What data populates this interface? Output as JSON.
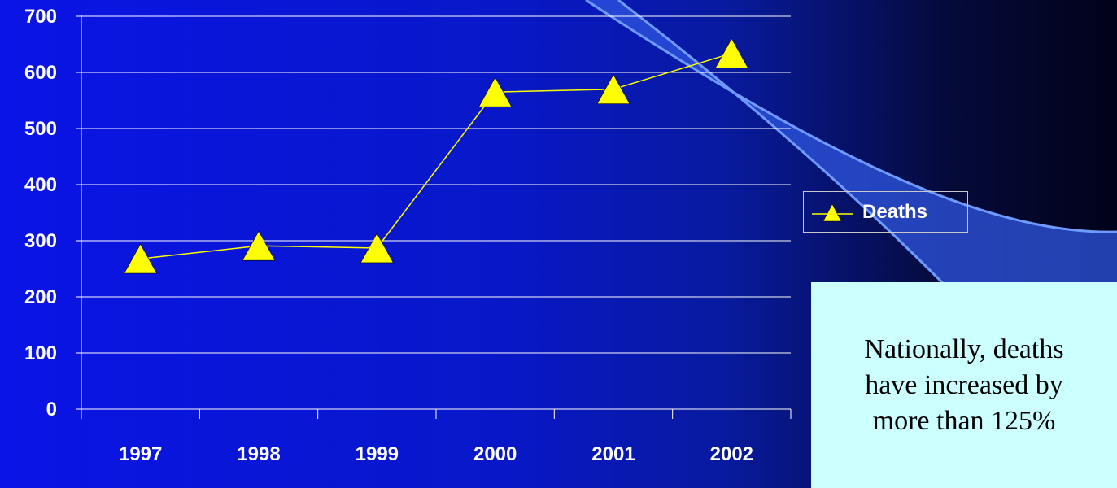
{
  "chart_data": {
    "type": "line",
    "categories": [
      "1997",
      "1998",
      "1999",
      "2000",
      "2001",
      "2002"
    ],
    "series": [
      {
        "name": "Deaths",
        "values": [
          268,
          291,
          287,
          565,
          570,
          634
        ],
        "color": "#ffff00",
        "marker": "triangle"
      }
    ],
    "ylim": [
      0,
      700
    ],
    "yticks": [
      0,
      100,
      200,
      300,
      400,
      500,
      600,
      700
    ],
    "grid": true,
    "legend": "right",
    "title": "",
    "xlabel": "",
    "ylabel": ""
  },
  "note": {
    "text": "Nationally, deaths have increased by more than 125%",
    "background": "#ccffff"
  },
  "colors": {
    "axis_text": "#ffffff",
    "grid": "#ffffff",
    "decoration_fill": "#2f55e0",
    "decoration_stroke": "#6f9bff"
  }
}
